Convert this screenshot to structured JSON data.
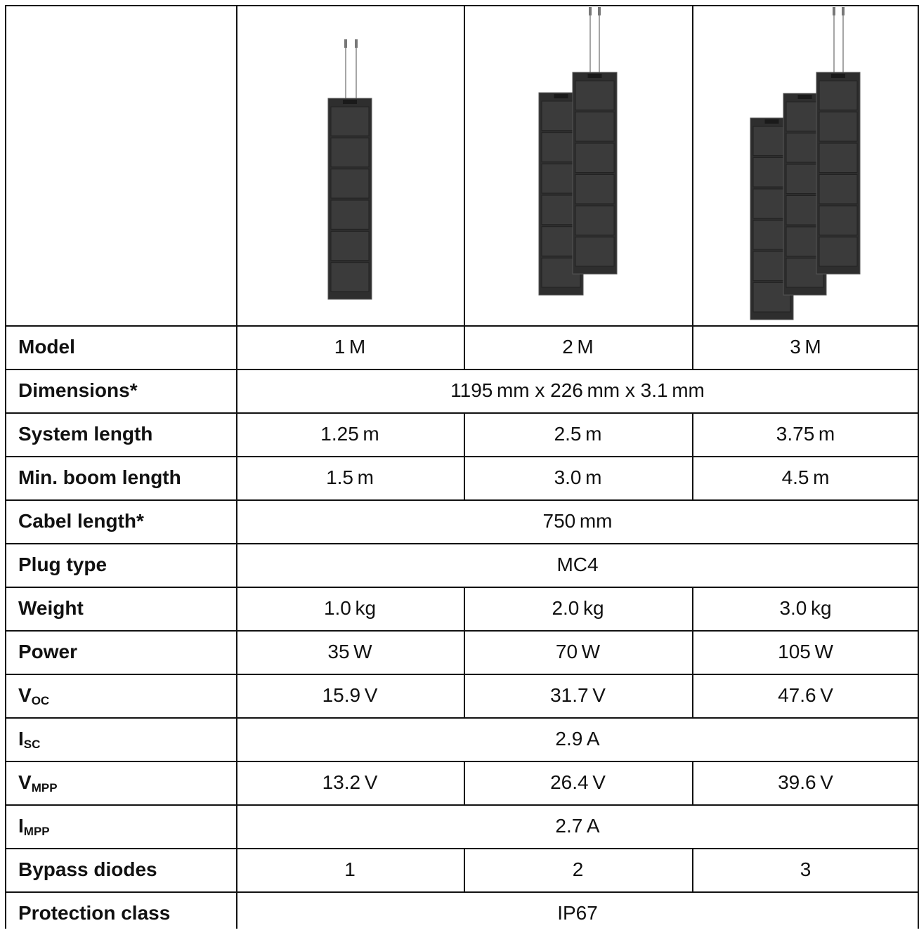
{
  "table": {
    "header": {
      "models": [
        "1M",
        "2M",
        "3M"
      ]
    },
    "rows": [
      {
        "label": "Model",
        "cells": [
          "1 M",
          "2 M",
          "3 M"
        ]
      },
      {
        "label": "Dimensions*",
        "cells": [
          "1195 mm x 226 mm x 3.1 mm"
        ]
      },
      {
        "label": "System length",
        "cells": [
          "1.25 m",
          "2.5 m",
          "3.75 m"
        ]
      },
      {
        "label": "Min. boom length",
        "cells": [
          "1.5 m",
          "3.0 m",
          "4.5 m"
        ]
      },
      {
        "label": "Cabel length*",
        "cells": [
          "750 mm"
        ]
      },
      {
        "label": "Plug type",
        "cells": [
          "MC4"
        ]
      },
      {
        "label": "Weight",
        "cells": [
          "1.0 kg",
          "2.0 kg",
          "3.0 kg"
        ]
      },
      {
        "label": "Power",
        "cells": [
          "35 W",
          "70 W",
          "105 W"
        ]
      },
      {
        "label": {
          "main": "V",
          "sub": "OC"
        },
        "cells": [
          "15.9 V",
          "31.7 V",
          "47.6 V"
        ]
      },
      {
        "label": {
          "main": "I",
          "sub": "SC"
        },
        "cells": [
          "2.9 A"
        ]
      },
      {
        "label": {
          "main": "V",
          "sub": "MPP"
        },
        "cells": [
          "13.2 V",
          "26.4 V",
          "39.6 V"
        ]
      },
      {
        "label": {
          "main": "I",
          "sub": "MPP"
        },
        "cells": [
          "2.7 A"
        ]
      },
      {
        "label": "Bypass diodes",
        "cells": [
          "1",
          "2",
          "3"
        ]
      },
      {
        "label": "Protection class",
        "cells": [
          "IP67"
        ]
      }
    ]
  }
}
